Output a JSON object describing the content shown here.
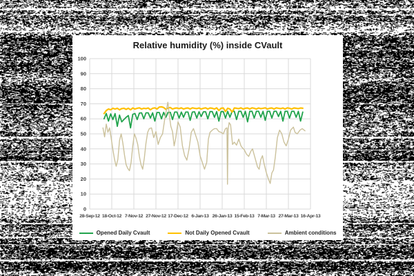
{
  "backdrop": {
    "description": "black-and-white static noise filling the image around the chart",
    "noise_colors": [
      "#000000",
      "#ffffff"
    ]
  },
  "panel": {
    "background": "#ffffff"
  },
  "chart_data": {
    "type": "line",
    "title": "Relative humidity (%) inside CVault",
    "title_color": "#1a1a1a",
    "grid": true,
    "grid_color": "#d9d9d9",
    "label_color": "#404040",
    "legend_position": "bottom",
    "x_axis": {
      "unit": "date",
      "range_days": [
        0,
        200
      ],
      "tick_days": [
        0,
        20,
        40,
        60,
        80,
        100,
        120,
        140,
        160,
        180,
        200
      ],
      "tick_labels": [
        "28-Sep-12",
        "18-Oct-12",
        "7-Nov-12",
        "27-Nov-12",
        "17-Dec-12",
        "6-Jan-13",
        "26-Jan-13",
        "15-Feb-13",
        "7-Mar-13",
        "27-Mar-13",
        "16-Apr-13"
      ]
    },
    "y_axis": {
      "range": [
        0,
        100
      ],
      "tick_step": 10,
      "tick_labels": [
        "0",
        "10",
        "20",
        "30",
        "40",
        "50",
        "60",
        "70",
        "80",
        "90",
        "100"
      ]
    },
    "series": [
      {
        "name": "Opened Daily Cvault",
        "color": "#21a34c",
        "width": 1.8,
        "start": 13,
        "step": 2,
        "values": [
          60,
          63.6,
          58.5,
          63.3,
          59.5,
          63.5,
          55,
          62.5,
          58,
          59.5,
          61,
          62.2,
          54,
          63,
          63.6,
          59.5,
          63.8,
          64,
          60,
          64,
          64,
          60.5,
          64,
          58.5,
          64.2,
          64.2,
          60,
          64.3,
          61,
          64.3,
          64.3,
          59.5,
          64.5,
          64.5,
          60.5,
          64.5,
          61,
          64.5,
          64.5,
          59,
          64.5,
          64.7,
          60.5,
          64.7,
          61.5,
          64.7,
          64.7,
          60,
          64.8,
          64.8,
          61,
          64.8,
          58.5,
          64.8,
          64.8,
          60.5,
          65,
          61,
          65,
          65,
          59.5,
          65,
          65,
          61,
          65,
          58,
          65,
          65,
          60.5,
          65,
          65,
          61,
          65,
          59,
          65,
          65,
          60.5,
          65,
          65,
          61.5,
          65,
          58.5,
          65,
          65,
          60.5,
          65,
          65,
          61,
          65,
          58.5,
          64.5
        ]
      },
      {
        "name": "Not Daily Opened Cvault",
        "color": "#ffc000",
        "width": 2.2,
        "start": 13,
        "step": 2,
        "values": [
          63.5,
          65.5,
          66.5,
          66,
          67,
          66.5,
          67,
          66,
          66.8,
          67,
          66.3,
          67,
          66,
          67.2,
          66.5,
          67,
          67.3,
          66.5,
          67,
          66.8,
          67.2,
          66,
          67,
          67.3,
          66.5,
          67.8,
          68,
          67.5,
          66.3,
          67.2,
          67.5,
          66.5,
          67,
          67.2,
          66.8,
          67.3,
          66.5,
          67,
          67.2,
          66.5,
          67.3,
          67,
          66.8,
          67.2,
          66.5,
          67,
          67.3,
          66.5,
          67.2,
          67,
          66.5,
          67.3,
          65.5,
          67,
          67.2,
          64.8,
          67,
          66.5,
          64.5,
          67.2,
          67,
          66.8,
          67.3,
          66.5,
          67,
          67.2,
          66.5,
          67.3,
          67,
          66.5,
          67.2,
          66.8,
          67,
          67.3,
          66.5,
          67,
          67.2,
          66.5,
          67.3,
          67,
          66.8,
          67.2,
          66.5,
          67.3,
          67,
          66.5,
          67.2,
          67,
          66.8,
          67.2,
          67
        ]
      },
      {
        "name": "Ambient conditions",
        "color": "#cbc19b",
        "width": 1.4,
        "points": [
          [
            12,
            54
          ],
          [
            13.5,
            48
          ],
          [
            15,
            56.5
          ],
          [
            16.5,
            51
          ],
          [
            18,
            54
          ],
          [
            19.5,
            47
          ],
          [
            21,
            39.5
          ],
          [
            22.5,
            33
          ],
          [
            24,
            28.5
          ],
          [
            25.5,
            33
          ],
          [
            27,
            45.5
          ],
          [
            28.5,
            50
          ],
          [
            30,
            44
          ],
          [
            31.5,
            36
          ],
          [
            33,
            29.5
          ],
          [
            34.5,
            27
          ],
          [
            36,
            25.5
          ],
          [
            37.5,
            31
          ],
          [
            39,
            42
          ],
          [
            40.5,
            50
          ],
          [
            42,
            47
          ],
          [
            43.5,
            43
          ],
          [
            45,
            35
          ],
          [
            46.5,
            29.5
          ],
          [
            48,
            26.5
          ],
          [
            49.5,
            34
          ],
          [
            51,
            44
          ],
          [
            52.5,
            51
          ],
          [
            54,
            53.5
          ],
          [
            56,
            54
          ],
          [
            58,
            47.5
          ],
          [
            60,
            51.5
          ],
          [
            62,
            43
          ],
          [
            64,
            47.5
          ],
          [
            66,
            50
          ],
          [
            68,
            60
          ],
          [
            69.5,
            66
          ],
          [
            70.8,
            71
          ],
          [
            72,
            63
          ],
          [
            73.5,
            55
          ],
          [
            75,
            51.5
          ],
          [
            76.5,
            42
          ],
          [
            78,
            47.5
          ],
          [
            80,
            58
          ],
          [
            82,
            54.5
          ],
          [
            84,
            42
          ],
          [
            86,
            35.5
          ],
          [
            88,
            32.5
          ],
          [
            90,
            40
          ],
          [
            92,
            51
          ],
          [
            94,
            53.5
          ],
          [
            96,
            49
          ],
          [
            98,
            44.5
          ],
          [
            100,
            35.5
          ],
          [
            102,
            31
          ],
          [
            104,
            26.5
          ],
          [
            106,
            31
          ],
          [
            107.5,
            46.5
          ],
          [
            109,
            51
          ],
          [
            111,
            52.5
          ],
          [
            113,
            53.5
          ],
          [
            115,
            53.5
          ],
          [
            117,
            51.5
          ],
          [
            119,
            51
          ],
          [
            121,
            50
          ],
          [
            123,
            53.5
          ],
          [
            124.3,
            54
          ],
          [
            124.8,
            16.5
          ],
          [
            125.4,
            53
          ],
          [
            126.3,
            57.5
          ],
          [
            127.6,
            56
          ],
          [
            129.4,
            43
          ],
          [
            131,
            44.5
          ],
          [
            133,
            42.5
          ],
          [
            135,
            46.5
          ],
          [
            137,
            42
          ],
          [
            138.5,
            40.5
          ],
          [
            140,
            39.5
          ],
          [
            142,
            36.5
          ],
          [
            144,
            35
          ],
          [
            146,
            38.5
          ],
          [
            147.5,
            40
          ],
          [
            149,
            36
          ],
          [
            150.5,
            32
          ],
          [
            152,
            28
          ],
          [
            153.5,
            26.5
          ],
          [
            155,
            33
          ],
          [
            156.5,
            35.5
          ],
          [
            158,
            30
          ],
          [
            159.7,
            25
          ],
          [
            161.6,
            20.5
          ],
          [
            163.5,
            17
          ],
          [
            165,
            24
          ],
          [
            166.5,
            26
          ],
          [
            168,
            34
          ],
          [
            170,
            47.5
          ],
          [
            172,
            52.5
          ],
          [
            174,
            50
          ],
          [
            176,
            44.5
          ],
          [
            178,
            42
          ],
          [
            180,
            46.5
          ],
          [
            182,
            52.5
          ],
          [
            184.5,
            54.5
          ],
          [
            186,
            51
          ],
          [
            188,
            50
          ],
          [
            190.5,
            52.5
          ],
          [
            192.5,
            53.5
          ],
          [
            195,
            52
          ]
        ]
      }
    ]
  }
}
